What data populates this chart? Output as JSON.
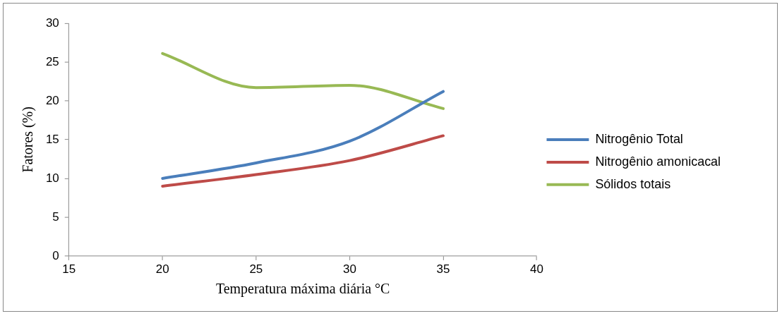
{
  "chart_data": {
    "type": "line",
    "xlabel": "Temperatura máxima diária °C",
    "ylabel": "Fatores (%)",
    "x": [
      20,
      25,
      30,
      35
    ],
    "series": [
      {
        "name": "Nitrogênio Total",
        "color": "#4a7ebb",
        "values": [
          10,
          12,
          14.8,
          21.2
        ]
      },
      {
        "name": "Nitrogênio amonicacal",
        "color": "#be4b48",
        "values": [
          9,
          10.5,
          12.3,
          15.5
        ]
      },
      {
        "name": "Sólidos totais",
        "color": "#98b954",
        "values": [
          26.1,
          21.7,
          22,
          19
        ]
      }
    ],
    "xlim": [
      15,
      40
    ],
    "xticks": [
      15,
      20,
      25,
      30,
      35,
      40
    ],
    "ylim": [
      0,
      30
    ],
    "yticks": [
      0,
      5,
      10,
      15,
      20,
      25,
      30
    ],
    "grid": false,
    "legend": "right",
    "marker": "none",
    "line_style": "solid"
  }
}
